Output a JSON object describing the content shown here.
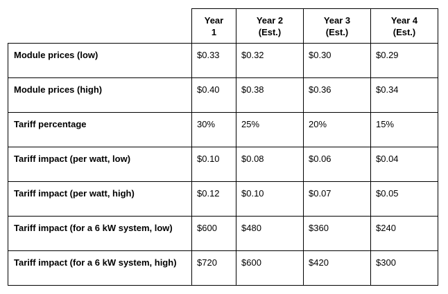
{
  "table": {
    "columns": [
      {
        "line1": "Year",
        "line2": "1"
      },
      {
        "line1": "Year 2",
        "line2": "(Est.)"
      },
      {
        "line1": "Year 3",
        "line2": "(Est.)"
      },
      {
        "line1": "Year 4",
        "line2": "(Est.)"
      }
    ],
    "rows": [
      {
        "label": "Module prices (low)",
        "values": [
          "$0.33",
          "$0.32",
          "$0.30",
          "$0.29"
        ]
      },
      {
        "label": "Module prices (high)",
        "values": [
          "$0.40",
          "$0.38",
          "$0.36",
          "$0.34"
        ]
      },
      {
        "label": "Tariff percentage",
        "values": [
          "30%",
          "25%",
          "20%",
          "15%"
        ]
      },
      {
        "label": "Tariff impact (per watt, low)",
        "values": [
          "$0.10",
          "$0.08",
          "$0.06",
          "$0.04"
        ]
      },
      {
        "label": "Tariff impact (per watt, high)",
        "values": [
          "$0.12",
          "$0.10",
          "$0.07",
          "$0.05"
        ]
      },
      {
        "label": "Tariff impact (for a 6 kW system, low)",
        "values": [
          "$600",
          "$480",
          "$360",
          "$240"
        ]
      },
      {
        "label": "Tariff impact (for a 6 kW system, high)",
        "values": [
          "$720",
          "$600",
          "$420",
          "$300"
        ]
      }
    ]
  }
}
